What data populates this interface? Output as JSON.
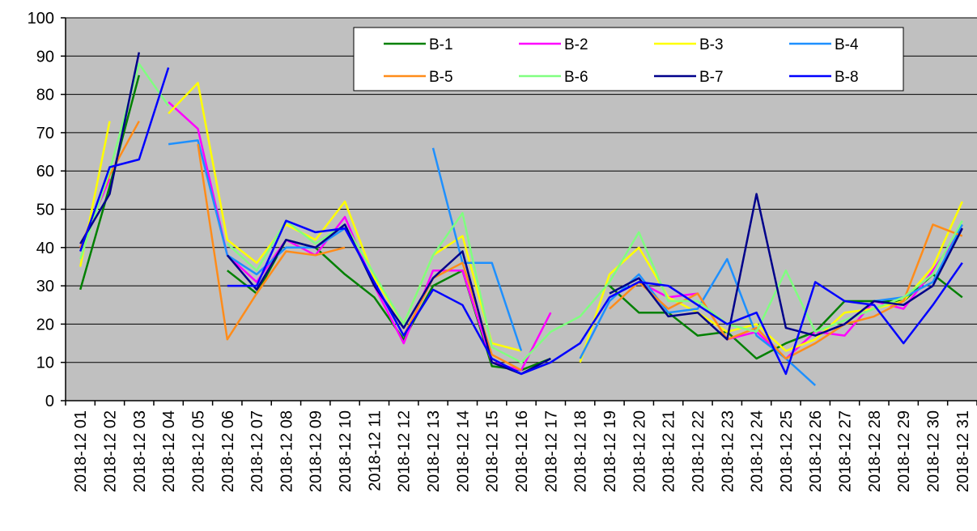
{
  "chart_data": {
    "type": "line",
    "title": "",
    "xlabel": "",
    "ylabel": "",
    "ylim": [
      0,
      100
    ],
    "yticks": [
      "0",
      "10",
      "20",
      "30",
      "40",
      "50",
      "60",
      "70",
      "80",
      "90",
      "100"
    ],
    "grid": "horizontal",
    "legend_position": "top-right",
    "plot_background": "#c0c0c0",
    "categories": [
      "2018-12 01",
      "2018-12 02",
      "2018-12 03",
      "2018-12 04",
      "2018-12 05",
      "2018-12 06",
      "2018-12 07",
      "2018-12 08",
      "2018-12 09",
      "2018-12 10",
      "2018-12 11",
      "2018-12 12",
      "2018-12 13",
      "2018-12 14",
      "2018-12 15",
      "2018-12 16",
      "2018-12 17",
      "2018-12 18",
      "2018-12 19",
      "2018-12 20",
      "2018-12 21",
      "2018-12 22",
      "2018-12 23",
      "2018-12 24",
      "2018-12 25",
      "2018-12 26",
      "2018-12 27",
      "2018-12 28",
      "2018-12 29",
      "2018-12 30",
      "2018-12 31"
    ],
    "series": [
      {
        "name": "B-1",
        "color": "#008000",
        "values": [
          29,
          56,
          85,
          null,
          null,
          34,
          28,
          42,
          40,
          33,
          27,
          16,
          30,
          34,
          9,
          8,
          11,
          null,
          30,
          23,
          23,
          17,
          18,
          11,
          15,
          18,
          26,
          26,
          26,
          33,
          27
        ]
      },
      {
        "name": "B-2",
        "color": "#ff00ff",
        "values": [
          40,
          58,
          null,
          78,
          71,
          38,
          31,
          42,
          38,
          48,
          30,
          15,
          34,
          34,
          10,
          8,
          23,
          null,
          27,
          31,
          27,
          28,
          16,
          18,
          11,
          18,
          17,
          26,
          24,
          34,
          45
        ]
      },
      {
        "name": "B-3",
        "color": "#ffff00",
        "values": [
          35,
          73,
          null,
          75,
          83,
          42,
          36,
          46,
          42,
          52,
          32,
          20,
          38,
          43,
          15,
          13,
          null,
          10,
          33,
          40,
          27,
          23,
          18,
          20,
          13,
          16,
          23,
          24,
          26,
          35,
          52
        ]
      },
      {
        "name": "B-4",
        "color": "#1e90ff",
        "values": [
          null,
          null,
          null,
          67,
          68,
          38,
          33,
          40,
          40,
          45,
          null,
          null,
          66,
          36,
          36,
          13,
          null,
          11,
          26,
          33,
          23,
          24,
          37,
          17,
          11,
          4,
          null,
          26,
          27,
          31,
          46
        ]
      },
      {
        "name": "B-5",
        "color": "#ff8c1a",
        "values": [
          40,
          59,
          73,
          null,
          67,
          16,
          28,
          39,
          38,
          40,
          null,
          17,
          32,
          36,
          12,
          8,
          null,
          null,
          24,
          31,
          24,
          28,
          16,
          19,
          11,
          15,
          20,
          22,
          26,
          46,
          43
        ]
      },
      {
        "name": "B-6",
        "color": "#80ff80",
        "values": [
          37,
          60,
          88,
          77,
          null,
          41,
          34,
          47,
          41,
          46,
          33,
          20,
          38,
          49,
          14,
          10,
          18,
          22,
          31,
          44,
          26,
          26,
          20,
          18,
          34,
          18,
          21,
          24,
          27,
          33,
          47
        ]
      },
      {
        "name": "B-7",
        "color": "#00008b",
        "values": [
          41,
          54,
          91,
          null,
          null,
          38,
          29,
          42,
          40,
          46,
          30,
          19,
          32,
          39,
          10,
          7,
          11,
          null,
          28,
          32,
          22,
          23,
          16,
          54,
          19,
          17,
          20,
          26,
          25,
          30,
          45
        ]
      },
      {
        "name": "B-8",
        "color": "#0000ff",
        "values": [
          39,
          61,
          63,
          87,
          null,
          30,
          30,
          47,
          44,
          45,
          31,
          17,
          29,
          25,
          11,
          7,
          10,
          15,
          27,
          31,
          30,
          25,
          20,
          23,
          7,
          31,
          26,
          25,
          15,
          25,
          36
        ]
      }
    ]
  }
}
